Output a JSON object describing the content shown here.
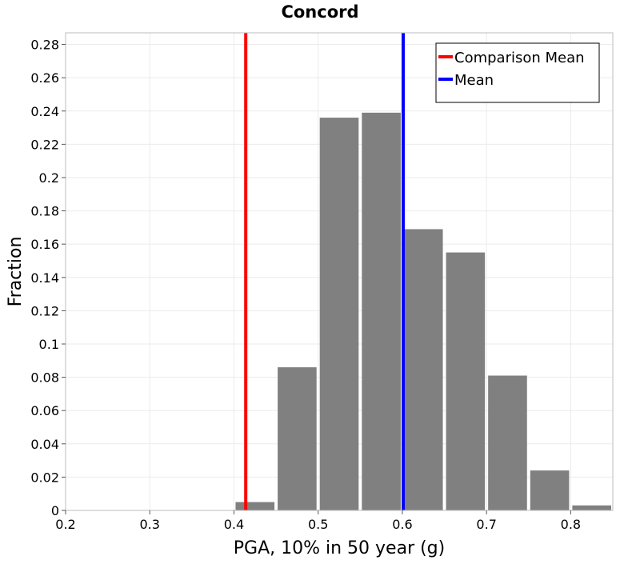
{
  "chart_data": {
    "type": "bar",
    "title": "Concord",
    "xlabel": "PGA, 10% in 50 year (g)",
    "ylabel": "Fraction",
    "xlim": [
      0.2,
      0.85
    ],
    "ylim": [
      0,
      0.287
    ],
    "x_ticks": [
      "0.2",
      "0.3",
      "0.4",
      "0.5",
      "0.6",
      "0.7",
      "0.8"
    ],
    "y_ticks": [
      "0",
      "0.02",
      "0.04",
      "0.06",
      "0.08",
      "0.1",
      "0.12",
      "0.14",
      "0.16",
      "0.18",
      "0.2",
      "0.22",
      "0.24",
      "0.26",
      "0.28"
    ],
    "grid": true,
    "bin_width": 0.05,
    "bins": [
      {
        "x_start": 0.4,
        "x_end": 0.45,
        "value": 0.005
      },
      {
        "x_start": 0.45,
        "x_end": 0.5,
        "value": 0.086
      },
      {
        "x_start": 0.5,
        "x_end": 0.55,
        "value": 0.236
      },
      {
        "x_start": 0.55,
        "x_end": 0.6,
        "value": 0.239
      },
      {
        "x_start": 0.6,
        "x_end": 0.65,
        "value": 0.169
      },
      {
        "x_start": 0.65,
        "x_end": 0.7,
        "value": 0.155
      },
      {
        "x_start": 0.7,
        "x_end": 0.75,
        "value": 0.081
      },
      {
        "x_start": 0.75,
        "x_end": 0.8,
        "value": 0.024
      },
      {
        "x_start": 0.8,
        "x_end": 0.85,
        "value": 0.003
      }
    ],
    "bar_color": "#808080",
    "reference_lines": [
      {
        "name": "Comparison Mean",
        "x": 0.414,
        "color": "#ff0000"
      },
      {
        "name": "Mean",
        "x": 0.601,
        "color": "#0000ff"
      }
    ],
    "legend": {
      "placement": "top-right",
      "entries": [
        {
          "label": "Comparison Mean",
          "color": "#ff0000"
        },
        {
          "label": "Mean",
          "color": "#0000ff"
        }
      ]
    }
  }
}
